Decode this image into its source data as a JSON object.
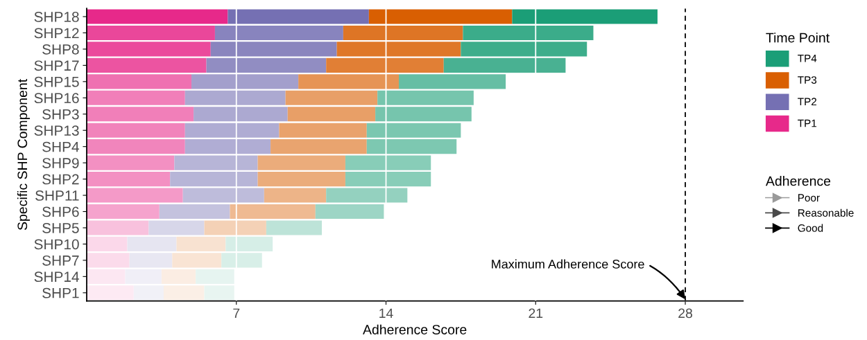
{
  "chart_data": {
    "type": "bar",
    "orientation": "horizontal",
    "stacked": true,
    "xlabel": "Adherence Score",
    "ylabel": "Specific SHP Component",
    "legend_title": "Time Point",
    "categories": [
      "SHP18",
      "SHP12",
      "SHP8",
      "SHP17",
      "SHP15",
      "SHP16",
      "SHP3",
      "SHP13",
      "SHP4",
      "SHP9",
      "SHP2",
      "SHP11",
      "SHP6",
      "SHP5",
      "SHP10",
      "SHP7",
      "SHP14",
      "SHP1"
    ],
    "series": [
      {
        "name": "TP1",
        "color": "#e7298a",
        "values": [
          6.6,
          6.0,
          5.8,
          5.6,
          4.9,
          4.6,
          5.0,
          4.6,
          4.6,
          4.1,
          3.9,
          4.5,
          3.4,
          2.9,
          1.9,
          2.0,
          1.8,
          2.2
        ],
        "colors": [
          "#e7298a",
          "#ea479a",
          "#eb499c",
          "#ec54a1",
          "#ef70b1",
          "#f17fb9",
          "#f17fb9",
          "#f183bb",
          "#f185bc",
          "#f390c2",
          "#f390c2",
          "#f49ac8",
          "#f5a3cd",
          "#f8c1dd",
          "#fbd8ea",
          "#fbdbeb",
          "#fce7f2",
          "#fdeaf3"
        ]
      },
      {
        "name": "TP2",
        "color": "#7570b3",
        "values": [
          6.6,
          6.0,
          5.9,
          5.6,
          5.0,
          4.7,
          4.4,
          4.4,
          4.0,
          3.9,
          4.1,
          3.8,
          3.3,
          2.6,
          2.3,
          2.0,
          1.7,
          1.4
        ],
        "colors": [
          "#7570b3",
          "#8884be",
          "#8a85be",
          "#918dc2",
          "#a39fcc",
          "#aca9d1",
          "#aca9d1",
          "#afacd3",
          "#b0add4",
          "#b7b5d7",
          "#b7b5d7",
          "#bebcdb",
          "#c4c2de",
          "#d7d6e9",
          "#e6e5f1",
          "#e8e7f2",
          "#f0eff7",
          "#f1f1f7"
        ]
      },
      {
        "name": "TP3",
        "color": "#d95f02",
        "values": [
          6.7,
          5.6,
          5.8,
          5.5,
          4.7,
          4.3,
          4.1,
          4.1,
          4.5,
          4.1,
          4.1,
          2.9,
          4.0,
          2.9,
          2.3,
          2.3,
          1.6,
          1.9
        ],
        "colors": [
          "#d95f02",
          "#de7525",
          "#df7728",
          "#e17f35",
          "#e69455",
          "#e89f67",
          "#e89f67",
          "#e9a26c",
          "#e9a46f",
          "#ebac7b",
          "#ebac7b",
          "#edb488",
          "#efba92",
          "#f4d1b6",
          "#f8e2d1",
          "#f9e4d4",
          "#fbede3",
          "#fbefe6"
        ]
      },
      {
        "name": "TP4",
        "color": "#1b9e77",
        "values": [
          6.8,
          6.1,
          5.9,
          5.7,
          5.0,
          4.5,
          4.5,
          4.4,
          4.2,
          4.0,
          4.0,
          3.8,
          3.2,
          2.6,
          2.2,
          1.9,
          1.8,
          1.4
        ],
        "colors": [
          "#1b9e77",
          "#3bac8a",
          "#3dad8b",
          "#49b192",
          "#66bea4",
          "#76c5ad",
          "#76c5ad",
          "#7bc7b0",
          "#7dc8b1",
          "#88cdb8",
          "#88cdb8",
          "#94d1bf",
          "#9dd5c5",
          "#bde3d8",
          "#d6eee7",
          "#d8efe8",
          "#e6f4f0",
          "#e8f5f1"
        ]
      },
      {
        "name": "Poor",
        "type": "line",
        "marker": "triangle",
        "color": "#9a9a9a",
        "values": [
          null,
          null,
          null,
          null,
          null,
          null,
          null,
          null,
          null,
          null,
          null,
          null,
          null,
          null,
          null,
          null,
          null,
          null
        ]
      },
      {
        "name": "Reasonable",
        "type": "line",
        "marker": "triangle",
        "color": "#4a4a4a",
        "values": [
          null,
          null,
          null,
          null,
          null,
          null,
          null,
          null,
          null,
          null,
          null,
          null,
          null,
          null,
          null,
          null,
          null,
          null
        ]
      },
      {
        "name": "Good",
        "type": "line",
        "marker": "triangle",
        "color": "#000000",
        "values": [
          null,
          null,
          null,
          null,
          null,
          null,
          null,
          null,
          null,
          null,
          null,
          null,
          null,
          null,
          null,
          null,
          null,
          null
        ]
      }
    ],
    "annotations": [
      "Adherence"
    ],
    "xlim": [
      0,
      30.7
    ],
    "xticks": [
      7,
      14,
      21,
      28
    ],
    "ref_lines": [
      {
        "axis": "x",
        "value": 28,
        "label": "Maximum Adherence Score",
        "line_style": "dashed",
        "color": "#000000"
      }
    ],
    "grid": "x",
    "legend": "right"
  }
}
